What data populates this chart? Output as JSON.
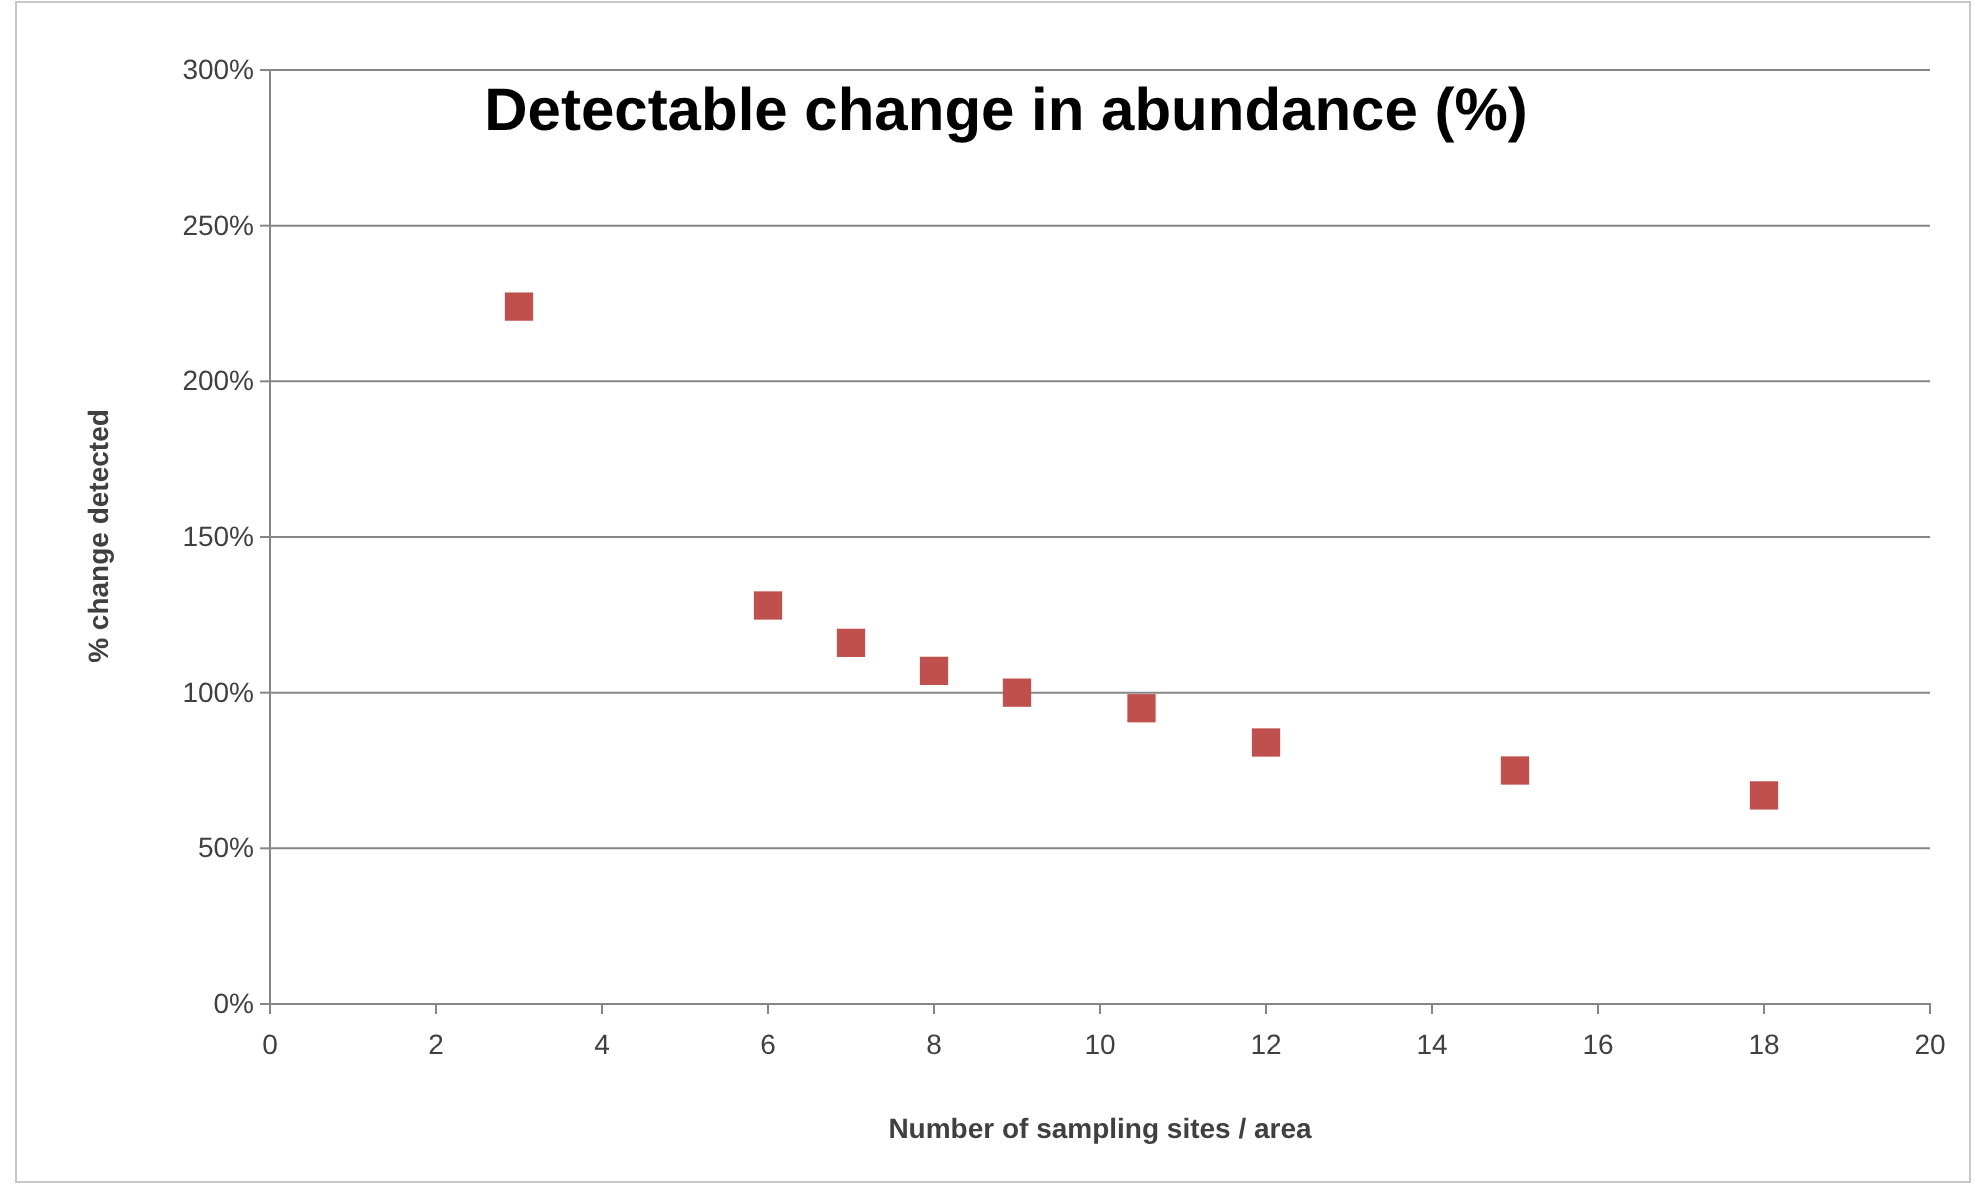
{
  "chart_data": {
    "type": "scatter",
    "title": "Detectable change in abundance (%)",
    "xlabel": "Number of sampling sites / area",
    "ylabel": "% change detected",
    "x": [
      3,
      6,
      7,
      8,
      9,
      10.5,
      12,
      15,
      18
    ],
    "series": [
      {
        "color": "#c0504d",
        "values": [
          224,
          128,
          116,
          107,
          100,
          95,
          84,
          75,
          67
        ]
      }
    ],
    "xlim": [
      0,
      20
    ],
    "xticks": [
      0,
      2,
      4,
      6,
      8,
      10,
      12,
      14,
      16,
      18,
      20
    ],
    "ylim": [
      0,
      300
    ],
    "yticks": [
      {
        "value": 0,
        "label": "0%"
      },
      {
        "value": 50,
        "label": "50%"
      },
      {
        "value": 100,
        "label": "100%"
      },
      {
        "value": 150,
        "label": "150%"
      },
      {
        "value": 200,
        "label": "200%"
      },
      {
        "value": 250,
        "label": "250%"
      },
      {
        "value": 300,
        "label": "300%"
      }
    ],
    "grid": "y",
    "marker": "square",
    "legend": false
  }
}
